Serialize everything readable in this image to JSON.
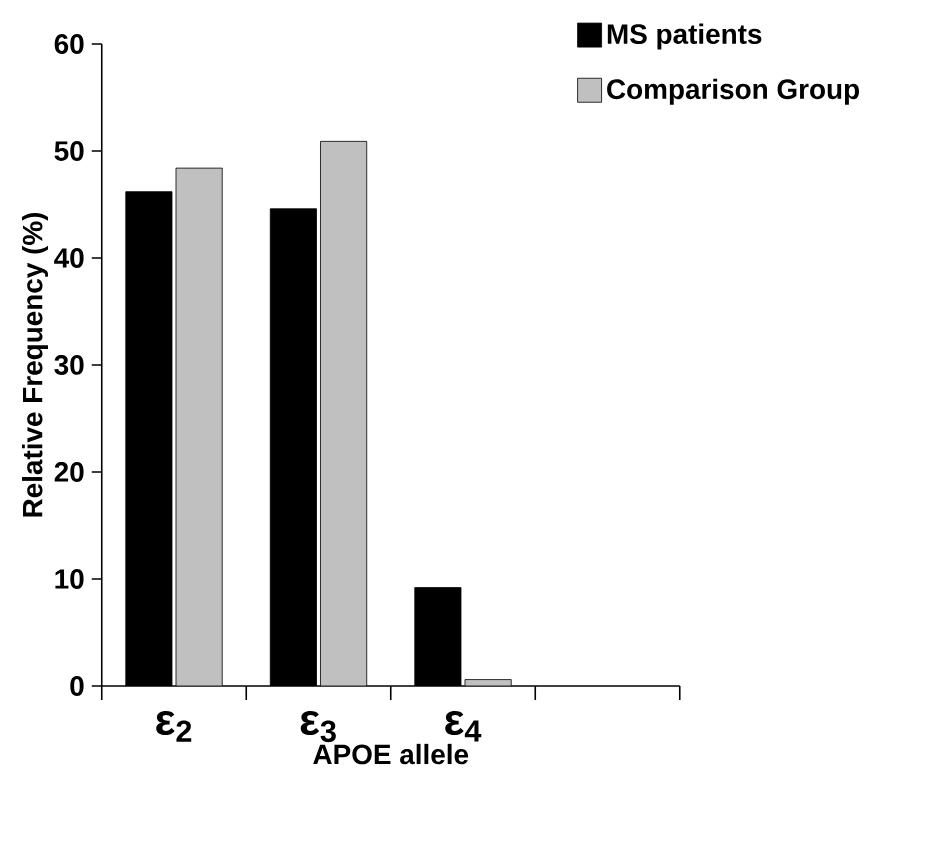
{
  "chart_data": {
    "type": "bar",
    "xlabel": "APOE allele",
    "ylabel": "Relative Frequency (%)",
    "categories": [
      "ε$_{2}$",
      "ε$_{3}$",
      "ε$_{4}$",
      null
    ],
    "series": [
      {
        "name": "MS patients",
        "color": "#000000",
        "values": [
          46.2,
          44.6,
          9.2,
          null
        ]
      },
      {
        "name": "Comparison Group",
        "color": "#c0c0c0",
        "values": [
          48.4,
          50.9,
          0.6,
          null
        ]
      }
    ],
    "ylim": [
      0,
      60
    ],
    "yticks": [
      0,
      10,
      20,
      30,
      40,
      50,
      60
    ],
    "grid": false,
    "legend": "top right"
  }
}
